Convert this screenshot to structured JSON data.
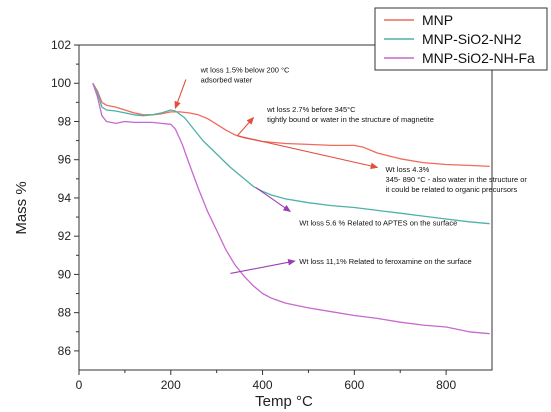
{
  "chart_data": {
    "type": "line",
    "xlabel": "Temp °C",
    "ylabel": "Mass %",
    "xlim": [
      0,
      900
    ],
    "ylim": [
      85,
      102
    ],
    "xticks": [
      0,
      200,
      400,
      600,
      800
    ],
    "yticks": [
      86,
      88,
      90,
      92,
      94,
      96,
      98,
      100,
      102
    ],
    "grid": false,
    "legend_position": "top-right",
    "series": [
      {
        "name": "MNP",
        "color": "#f06a5e",
        "points": [
          [
            30,
            100.0
          ],
          [
            40,
            99.6
          ],
          [
            50,
            99.0
          ],
          [
            60,
            98.85
          ],
          [
            80,
            98.75
          ],
          [
            100,
            98.6
          ],
          [
            120,
            98.45
          ],
          [
            140,
            98.35
          ],
          [
            160,
            98.35
          ],
          [
            180,
            98.4
          ],
          [
            200,
            98.5
          ],
          [
            220,
            98.5
          ],
          [
            240,
            98.45
          ],
          [
            260,
            98.35
          ],
          [
            280,
            98.15
          ],
          [
            300,
            97.85
          ],
          [
            320,
            97.55
          ],
          [
            340,
            97.3
          ],
          [
            360,
            97.15
          ],
          [
            380,
            97.05
          ],
          [
            400,
            96.95
          ],
          [
            450,
            96.85
          ],
          [
            500,
            96.8
          ],
          [
            550,
            96.75
          ],
          [
            600,
            96.75
          ],
          [
            620,
            96.65
          ],
          [
            650,
            96.35
          ],
          [
            700,
            96.05
          ],
          [
            750,
            95.85
          ],
          [
            800,
            95.75
          ],
          [
            850,
            95.7
          ],
          [
            895,
            95.65
          ]
        ]
      },
      {
        "name": "MNP-SiO2-NH2",
        "color": "#4fb0a8",
        "points": [
          [
            30,
            100.0
          ],
          [
            40,
            99.5
          ],
          [
            50,
            98.75
          ],
          [
            60,
            98.6
          ],
          [
            80,
            98.55
          ],
          [
            100,
            98.45
          ],
          [
            120,
            98.35
          ],
          [
            140,
            98.3
          ],
          [
            160,
            98.35
          ],
          [
            180,
            98.45
          ],
          [
            200,
            98.6
          ],
          [
            210,
            98.55
          ],
          [
            230,
            98.2
          ],
          [
            250,
            97.6
          ],
          [
            270,
            97.0
          ],
          [
            300,
            96.3
          ],
          [
            330,
            95.6
          ],
          [
            360,
            95.0
          ],
          [
            380,
            94.6
          ],
          [
            400,
            94.35
          ],
          [
            420,
            94.15
          ],
          [
            450,
            93.95
          ],
          [
            500,
            93.75
          ],
          [
            550,
            93.6
          ],
          [
            600,
            93.5
          ],
          [
            650,
            93.35
          ],
          [
            700,
            93.2
          ],
          [
            750,
            93.05
          ],
          [
            800,
            92.9
          ],
          [
            850,
            92.75
          ],
          [
            895,
            92.65
          ]
        ]
      },
      {
        "name": "MNP-SiO2-NH-Fa",
        "color": "#c66ad0",
        "points": [
          [
            30,
            100.0
          ],
          [
            40,
            99.3
          ],
          [
            50,
            98.3
          ],
          [
            60,
            98.0
          ],
          [
            80,
            97.9
          ],
          [
            100,
            98.0
          ],
          [
            120,
            97.95
          ],
          [
            140,
            97.95
          ],
          [
            160,
            97.95
          ],
          [
            180,
            97.9
          ],
          [
            200,
            97.85
          ],
          [
            210,
            97.6
          ],
          [
            225,
            96.8
          ],
          [
            240,
            95.8
          ],
          [
            260,
            94.5
          ],
          [
            280,
            93.3
          ],
          [
            300,
            92.3
          ],
          [
            320,
            91.3
          ],
          [
            340,
            90.5
          ],
          [
            360,
            89.9
          ],
          [
            380,
            89.4
          ],
          [
            400,
            89.0
          ],
          [
            420,
            88.75
          ],
          [
            450,
            88.5
          ],
          [
            500,
            88.25
          ],
          [
            550,
            88.05
          ],
          [
            600,
            87.85
          ],
          [
            650,
            87.7
          ],
          [
            700,
            87.5
          ],
          [
            750,
            87.35
          ],
          [
            800,
            87.25
          ],
          [
            850,
            87.0
          ],
          [
            895,
            86.9
          ]
        ]
      }
    ],
    "annotations": [
      {
        "lines": [
          "wt loss 1.5% below 200 °C",
          "adsorbed water"
        ],
        "at": [
          265,
          100.55
        ],
        "color": "#e0503f",
        "arrow_to": [
          210,
          98.7
        ],
        "arrow_from": [
          233,
          100.2
        ]
      },
      {
        "lines": [
          "wt loss 2.7% before 345°C",
          "tightly bound or water in the structure of magnetite"
        ],
        "at": [
          410,
          98.5
        ],
        "color": "#e0503f",
        "arrow_to": [
          380,
          98.2
        ],
        "arrow_from": [
          345,
          97.25
        ]
      },
      {
        "lines": [
          "Wt loss 4.3%",
          "345- 890 °C - also water in the structure or",
          "it could be related to organic precursors"
        ],
        "at": [
          668,
          95.35
        ],
        "color": "#e0503f",
        "arrow_from": [
          345,
          97.25
        ],
        "arrow_to": [
          650,
          95.6
        ]
      },
      {
        "lines": [
          "Wt loss 5.6 % Related to APTES on the surface"
        ],
        "at": [
          480,
          92.55
        ],
        "color": "#9b3fb0",
        "arrow_from": [
          385,
          94.55
        ],
        "arrow_to": [
          460,
          93.3
        ]
      },
      {
        "lines": [
          "Wt loss 11,1% Related to feroxamine on the surface"
        ],
        "at": [
          480,
          90.55
        ],
        "color": "#9b3fb0",
        "arrow_from": [
          330,
          90.05
        ],
        "arrow_to": [
          470,
          90.7
        ]
      }
    ]
  }
}
